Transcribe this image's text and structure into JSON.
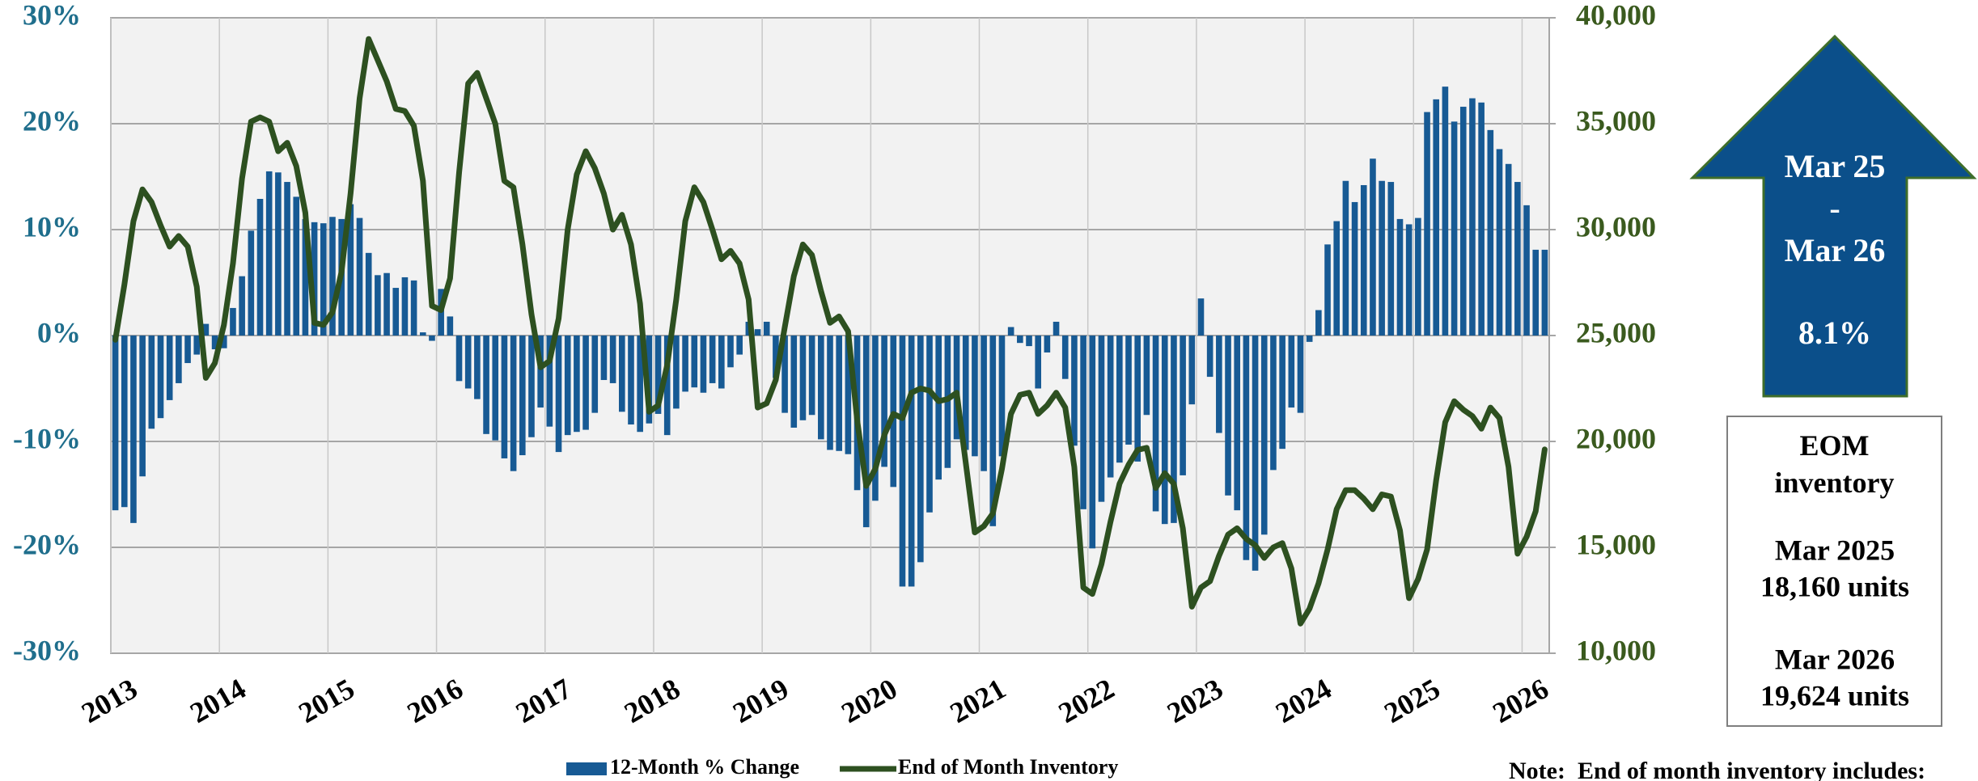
{
  "chart_data": {
    "type": "combo",
    "categories": [
      "2013",
      null,
      null,
      null,
      null,
      null,
      null,
      null,
      null,
      null,
      null,
      null,
      "2014",
      null,
      null,
      null,
      null,
      null,
      null,
      null,
      null,
      null,
      null,
      null,
      "2015",
      null,
      null,
      null,
      null,
      null,
      null,
      null,
      null,
      null,
      null,
      null,
      "2016",
      null,
      null,
      null,
      null,
      null,
      null,
      null,
      null,
      null,
      null,
      null,
      "2017",
      null,
      null,
      null,
      null,
      null,
      null,
      null,
      null,
      null,
      null,
      null,
      "2018",
      null,
      null,
      null,
      null,
      null,
      null,
      null,
      null,
      null,
      null,
      null,
      "2019",
      null,
      null,
      null,
      null,
      null,
      null,
      null,
      null,
      null,
      null,
      null,
      "2020",
      null,
      null,
      null,
      null,
      null,
      null,
      null,
      null,
      null,
      null,
      null,
      "2021",
      null,
      null,
      null,
      null,
      null,
      null,
      null,
      null,
      null,
      null,
      null,
      "2022",
      null,
      null,
      null,
      null,
      null,
      null,
      null,
      null,
      null,
      null,
      null,
      "2023",
      null,
      null,
      null,
      null,
      null,
      null,
      null,
      null,
      null,
      null,
      null,
      "2024",
      null,
      null,
      null,
      null,
      null,
      null,
      null,
      null,
      null,
      null,
      null,
      "2025",
      null,
      null,
      null,
      null,
      null,
      null,
      null,
      null,
      null,
      null,
      null,
      "2026",
      null,
      null
    ],
    "series": [
      {
        "name": "12-Month % Change",
        "type": "bar",
        "color": "#175a94",
        "values": [
          -16.5,
          -16.2,
          -17.7,
          -13.3,
          -8.8,
          -7.8,
          -6.1,
          -4.5,
          -2.6,
          -1.8,
          1.1,
          -1.3,
          -1.2,
          2.6,
          5.6,
          9.9,
          12.9,
          15.5,
          15.4,
          14.5,
          13.1,
          11.0,
          10.7,
          10.6,
          11.2,
          11.0,
          12.4,
          11.1,
          7.8,
          5.7,
          5.9,
          4.5,
          5.5,
          5.2,
          0.3,
          -0.5,
          4.4,
          1.8,
          -4.3,
          -5.0,
          -6.0,
          -9.3,
          -9.9,
          -11.6,
          -12.8,
          -11.3,
          -9.6,
          -6.8,
          -8.6,
          -11.0,
          -9.4,
          -9.1,
          -8.9,
          -7.3,
          -4.2,
          -4.5,
          -7.2,
          -8.4,
          -9.1,
          -8.3,
          -7.4,
          -9.4,
          -6.9,
          -5.3,
          -4.9,
          -5.4,
          -4.5,
          -5.0,
          -3.0,
          -1.8,
          1.3,
          0.6,
          1.3,
          -4.0,
          -7.3,
          -8.7,
          -8.0,
          -7.5,
          -9.8,
          -10.8,
          -10.9,
          -11.2,
          -14.6,
          -18.1,
          -15.6,
          -12.4,
          -14.3,
          -23.7,
          -23.7,
          -21.4,
          -16.7,
          -13.6,
          -12.5,
          -9.8,
          -10.8,
          -11.4,
          -12.8,
          -18.0,
          -11.4,
          0.8,
          -0.7,
          -1.0,
          -5.0,
          -1.6,
          1.3,
          -4.1,
          -10.4,
          -16.4,
          -20.1,
          -15.7,
          -13.4,
          -12.0,
          -10.3,
          -11.9,
          -7.5,
          -16.6,
          -17.8,
          -17.7,
          -13.2,
          -6.5,
          3.5,
          -3.9,
          -9.2,
          -15.1,
          -16.5,
          -21.2,
          -22.2,
          -18.8,
          -12.7,
          -10.7,
          -6.8,
          -7.3,
          -0.6,
          2.4,
          8.6,
          10.8,
          14.6,
          12.6,
          14.2,
          16.7,
          14.6,
          14.5,
          11.0,
          10.5,
          11.1,
          21.1,
          22.3,
          23.5,
          20.2,
          21.6,
          22.4,
          22.0,
          19.4,
          17.6,
          16.2,
          14.5,
          12.3,
          8.1,
          8.1
        ]
      },
      {
        "name": "End of Month Inventory",
        "type": "line",
        "axis": "y2",
        "color": "#2d5020",
        "values": [
          24800,
          27400,
          30400,
          31900,
          31300,
          30200,
          29200,
          29700,
          29200,
          27300,
          23000,
          23700,
          25500,
          28400,
          32400,
          35100,
          35300,
          35100,
          33700,
          34100,
          33000,
          30800,
          25600,
          25500,
          26100,
          28000,
          31700,
          36200,
          39000,
          38000,
          37000,
          35700,
          35600,
          34900,
          32300,
          26400,
          26200,
          27700,
          32700,
          36900,
          37400,
          36200,
          35000,
          32300,
          32000,
          29300,
          26000,
          23500,
          23800,
          25800,
          30000,
          32600,
          33700,
          32900,
          31700,
          30000,
          30700,
          29300,
          26500,
          21400,
          21700,
          23600,
          26700,
          30400,
          32000,
          31300,
          30000,
          28600,
          29000,
          28400,
          26700,
          21600,
          21800,
          22900,
          25400,
          27800,
          29300,
          28800,
          27100,
          25600,
          25900,
          25200,
          21000,
          17900,
          18700,
          20300,
          21300,
          21100,
          22300,
          22500,
          22400,
          21900,
          22000,
          22300,
          19000,
          15700,
          16000,
          16600,
          18700,
          21300,
          22200,
          22300,
          21300,
          21700,
          22300,
          21600,
          18800,
          13100,
          12800,
          14200,
          16200,
          18000,
          18900,
          19600,
          19700,
          17800,
          18500,
          18000,
          15900,
          12200,
          13100,
          13400,
          14600,
          15600,
          15900,
          15400,
          15100,
          14500,
          15000,
          15200,
          14000,
          11400,
          12100,
          13300,
          14900,
          16800,
          17700,
          17700,
          17300,
          16800,
          17500,
          17400,
          15800,
          12600,
          13500,
          14900,
          18160,
          20900,
          21900,
          21500,
          21200,
          20600,
          21600,
          21100,
          18800,
          14700,
          15500,
          16700,
          19624
        ]
      }
    ],
    "ylim": [
      -30,
      30
    ],
    "yticks": [
      {
        "value": -30,
        "label": "-30%"
      },
      {
        "value": -20,
        "label": "-20%"
      },
      {
        "value": -10,
        "label": "-10%"
      },
      {
        "value": 0,
        "label": "0%"
      },
      {
        "value": 10,
        "label": "10%"
      },
      {
        "value": 20,
        "label": "20%"
      },
      {
        "value": 30,
        "label": "30%"
      }
    ],
    "y2lim": [
      10000,
      40000
    ],
    "y2ticks": [
      {
        "value": 10000,
        "label": "10,000"
      },
      {
        "value": 15000,
        "label": "15,000"
      },
      {
        "value": 20000,
        "label": "20,000"
      },
      {
        "value": 25000,
        "label": "25,000"
      },
      {
        "value": 30000,
        "label": "30,000"
      },
      {
        "value": 35000,
        "label": "35,000"
      },
      {
        "value": 40000,
        "label": "40,000"
      }
    ],
    "grid": true,
    "legend": "bottom",
    "arrow": {
      "period_start": "Mar 25",
      "separator": "-",
      "period_end": "Mar 26",
      "change": "8.1%"
    },
    "summary_box": {
      "title": "EOM inventory",
      "rows": [
        {
          "label": "Mar 2025",
          "value": "18,160 units"
        },
        {
          "label": "Mar 2026",
          "value": "19,624 units"
        }
      ]
    },
    "note": {
      "label": "Note:",
      "text": "End of month inventory includes:"
    }
  }
}
